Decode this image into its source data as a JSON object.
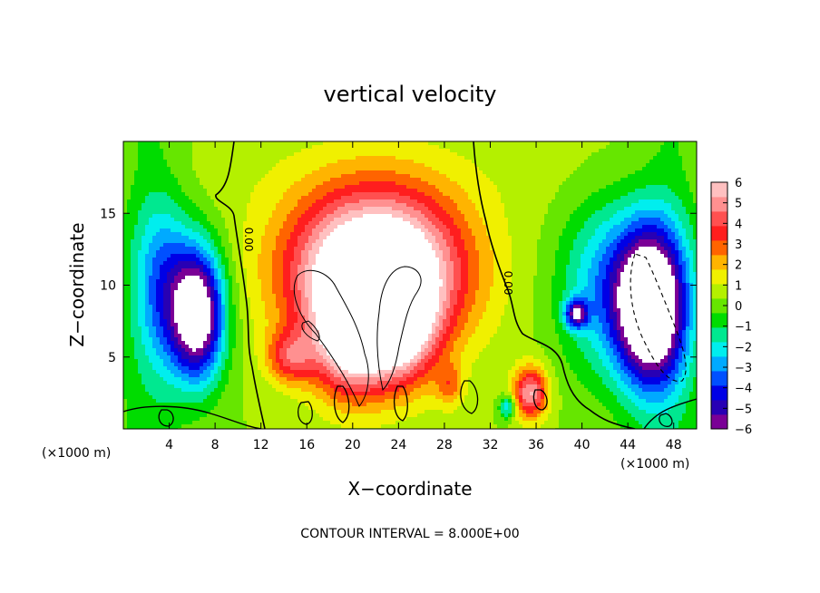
{
  "chart_data": {
    "type": "heatmap",
    "title": "vertical velocity",
    "xlabel": "X−coordinate",
    "ylabel": "Z−coordinate",
    "x_unit": "(×1000 m)",
    "xlim": [
      0,
      50
    ],
    "ylim": [
      0,
      20
    ],
    "x_ticks": [
      4,
      8,
      12,
      16,
      20,
      24,
      28,
      32,
      36,
      40,
      44,
      48
    ],
    "x_tick_labels": [
      "4",
      "8",
      "12",
      "16",
      "20",
      "24",
      "28",
      "32",
      "36",
      "40",
      "44",
      "48"
    ],
    "y_ticks": [
      5,
      10,
      15
    ],
    "y_tick_labels": [
      "5",
      "10",
      "15"
    ],
    "zero_contour_label": "0.00",
    "footer": "CONTOUR INTERVAL = 8.000E+00",
    "colorbar": {
      "min": -6,
      "max": 6,
      "tick_values": [
        6,
        5,
        4,
        3,
        2,
        1,
        0,
        -1,
        -2,
        -3,
        -4,
        -5,
        -6
      ],
      "tick_labels": [
        "6",
        "5",
        "4",
        "3",
        "2",
        "1",
        "0",
        "−1",
        "−2",
        "−3",
        "−4",
        "−5",
        "−6"
      ],
      "colors": [
        "#7a0096",
        "#2800b4",
        "#0000e6",
        "#0050ff",
        "#00aaff",
        "#00eeee",
        "#00e890",
        "#00dc00",
        "#66e600",
        "#b4f000",
        "#f0f000",
        "#ffb400",
        "#ff6400",
        "#ff1e1e",
        "#ff5050",
        "#ff9090",
        "#ffc0c0"
      ]
    },
    "features": [
      {
        "kind": "updraft",
        "x": 22,
        "z": 11,
        "sx": 7.5,
        "sz": 5.5,
        "w": 9
      },
      {
        "kind": "updraft",
        "x": 20,
        "z": 6,
        "sx": 3.5,
        "sz": 4,
        "w": 5
      },
      {
        "kind": "updraft",
        "x": 24.5,
        "z": 7,
        "sx": 3,
        "sz": 4,
        "w": 4
      },
      {
        "kind": "updraft",
        "x": 14.5,
        "z": 5,
        "sx": 2,
        "sz": 1.8,
        "w": 3
      },
      {
        "kind": "updraft",
        "x": 35.5,
        "z": 2.5,
        "sx": 1.5,
        "sz": 1.8,
        "w": 5
      },
      {
        "kind": "updraft",
        "x": 28.5,
        "z": 3,
        "sx": 1.2,
        "sz": 1.5,
        "w": 2
      },
      {
        "kind": "downdraft",
        "x": 6.5,
        "z": 8,
        "sx": 2.3,
        "sz": 4.5,
        "w": -8
      },
      {
        "kind": "downdraft",
        "x": 3.5,
        "z": 10,
        "sx": 2.5,
        "sz": 6,
        "w": -3
      },
      {
        "kind": "downdraft",
        "x": 46,
        "z": 8.5,
        "sx": 3,
        "sz": 5.5,
        "w": -9
      },
      {
        "kind": "downdraft",
        "x": 42,
        "z": 10,
        "sx": 4,
        "sz": 6,
        "w": -3
      },
      {
        "kind": "downdraft",
        "x": 39.5,
        "z": 8,
        "sx": 1,
        "sz": 1,
        "w": -5
      },
      {
        "kind": "downdraft",
        "x": 33.5,
        "z": 1.5,
        "sx": 0.7,
        "sz": 0.8,
        "w": -3
      }
    ]
  }
}
